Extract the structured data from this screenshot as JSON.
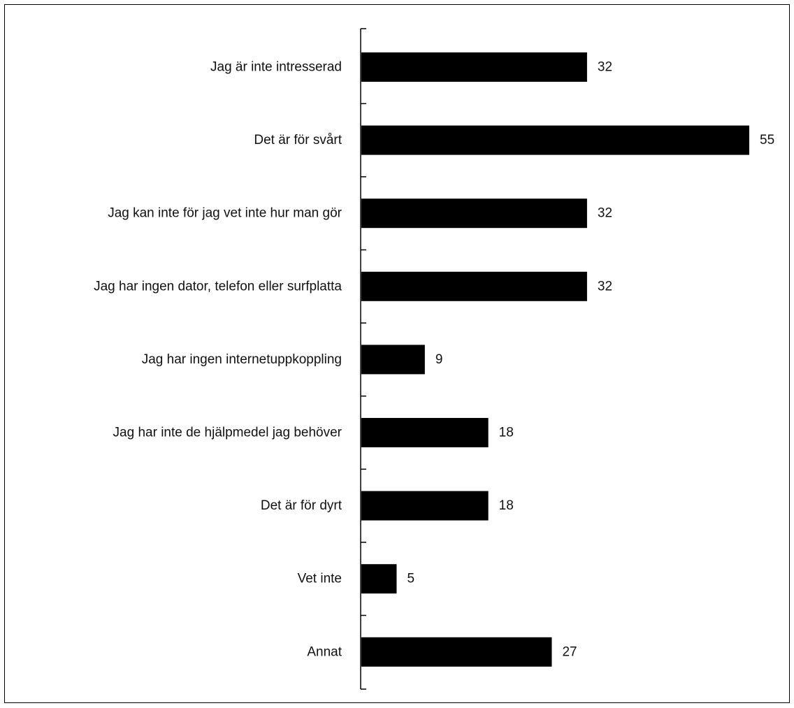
{
  "chart_data": {
    "type": "bar",
    "orientation": "horizontal",
    "categories": [
      "Jag är inte intresserad",
      "Det är för svårt",
      "Jag kan inte för jag vet inte hur man gör",
      "Jag har ingen dator, telefon eller surfplatta",
      "Jag har ingen internetuppkoppling",
      "Jag har inte de hjälpmedel jag behöver",
      "Det är för dyrt",
      "Vet inte",
      "Annat"
    ],
    "values": [
      32,
      55,
      32,
      32,
      9,
      18,
      18,
      5,
      27
    ],
    "title": "",
    "xlabel": "",
    "ylabel": "",
    "xlim": [
      0,
      55
    ],
    "data_labels": true,
    "grid": false,
    "legend": "none",
    "bar_color": "#000000"
  }
}
